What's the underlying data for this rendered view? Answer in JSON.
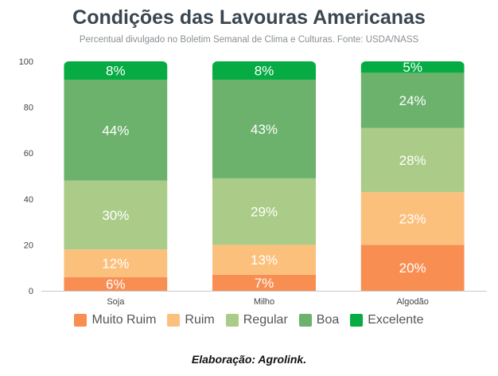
{
  "chart_data": {
    "type": "bar",
    "stacked": true,
    "title": "Condições das Lavouras Americanas",
    "subtitle": "Percentual divulgado no Boletim Semanal de Clima e Culturas. Fonte: USDA/NASS",
    "categories": [
      "Soja",
      "Milho",
      "Algodão"
    ],
    "ylim": [
      0,
      100
    ],
    "yticks": [
      0,
      20,
      40,
      60,
      80,
      100
    ],
    "grid": false,
    "legend_position": "bottom",
    "series": [
      {
        "name": "Muito Ruim",
        "color": "#f98e52",
        "values": [
          6,
          7,
          20
        ]
      },
      {
        "name": "Ruim",
        "color": "#fcc07d",
        "values": [
          12,
          13,
          23
        ]
      },
      {
        "name": "Regular",
        "color": "#aacc88",
        "values": [
          30,
          29,
          28
        ]
      },
      {
        "name": "Boa",
        "color": "#6cb26d",
        "values": [
          44,
          43,
          24
        ]
      },
      {
        "name": "Excelente",
        "color": "#06ac43",
        "values": [
          8,
          8,
          5
        ]
      }
    ]
  },
  "caption": "Elaboração: Agrolink."
}
